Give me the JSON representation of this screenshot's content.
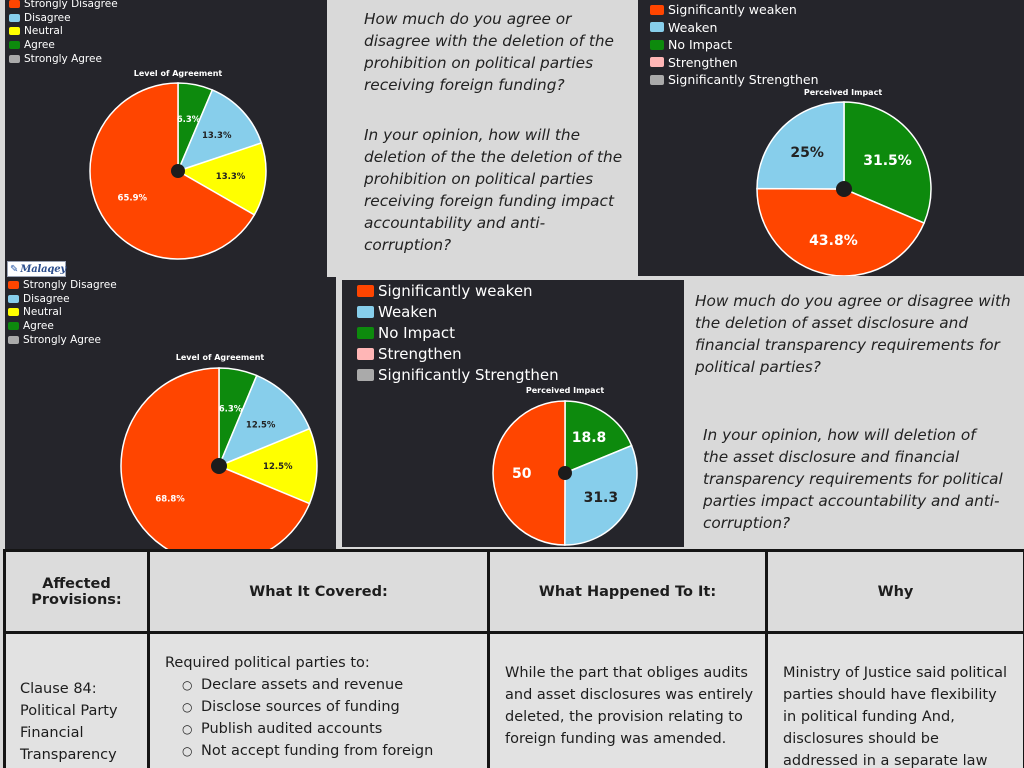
{
  "colors": {
    "strongly_disagree": "#ff4500",
    "disagree": "#87ceeb",
    "neutral": "#ffff00",
    "agree": "#0d8a0d",
    "strongly_agree": "#aaaaaa",
    "strengthen": "#ffb6b6"
  },
  "agreement_legend": [
    "Strongly Disagree",
    "Disagree",
    "Neutral",
    "Agree",
    "Strongly Agree"
  ],
  "impact_legend": [
    "Significantly weaken",
    "Weaken",
    "No Impact",
    "Strengthen",
    "Significantly Strengthen"
  ],
  "logo": {
    "icon": "logo-mark-icon",
    "text": "Malaqey"
  },
  "questions": {
    "q1": "How much do you agree or disagree with the deletion of the prohibition on political parties receiving foreign funding?",
    "q2": "In your opinion, how will the deletion of the the deletion of the prohibition on political parties receiving foreign funding impact accountability and anti-corruption?",
    "q3": "How much do you agree or disagree with the deletion of asset disclosure and financial transparency requirements for political parties?",
    "q4": "In your opinion, how will deletion of the asset disclosure and financial transparency requirements for political parties impact accountability and anti-corruption?"
  },
  "chart_data": [
    {
      "type": "pie",
      "title": "Level of Agreement",
      "legend": [
        "Strongly Disagree",
        "Disagree",
        "Neutral",
        "Agree",
        "Strongly Agree"
      ],
      "slices": [
        {
          "label": "Agree",
          "value": 6.3,
          "text": "6.3%"
        },
        {
          "label": "Disagree",
          "value": 13.3,
          "text": "13.3%"
        },
        {
          "label": "Neutral",
          "value": 13.3,
          "text": "13.3%"
        },
        {
          "label": "Strongly Disagree",
          "value": 65.9,
          "text": "65.9%"
        }
      ]
    },
    {
      "type": "pie",
      "title": "Perceived Impact",
      "legend": [
        "Significantly weaken",
        "Weaken",
        "No Impact",
        "Strengthen",
        "Significantly Strengthen"
      ],
      "slices": [
        {
          "label": "No Impact",
          "value": 31.5,
          "text": "31.5%"
        },
        {
          "label": "Significantly weaken",
          "value": 43.8,
          "text": "43.8%"
        },
        {
          "label": "Weaken",
          "value": 25,
          "text": "25%"
        }
      ]
    },
    {
      "type": "pie",
      "title": "Level of Agreement",
      "legend": [
        "Strongly Disagree",
        "Disagree",
        "Neutral",
        "Agree",
        "Strongly Agree"
      ],
      "slices": [
        {
          "label": "Agree",
          "value": 6.3,
          "text": "6.3%"
        },
        {
          "label": "Disagree",
          "value": 12.5,
          "text": "12.5%"
        },
        {
          "label": "Neutral",
          "value": 12.5,
          "text": "12.5%"
        },
        {
          "label": "Strongly Disagree",
          "value": 68.8,
          "text": "68.8%"
        }
      ]
    },
    {
      "type": "pie",
      "title": "Perceived Impact",
      "legend": [
        "Significantly weaken",
        "Weaken",
        "No Impact",
        "Strengthen",
        "Significantly Strengthen"
      ],
      "slices": [
        {
          "label": "No Impact",
          "value": 18.8,
          "text": "18.8"
        },
        {
          "label": "Weaken",
          "value": 31.3,
          "text": "31.3"
        },
        {
          "label": "Significantly weaken",
          "value": 50,
          "text": "50"
        }
      ]
    }
  ],
  "table": {
    "headers": [
      "Affected Provisions:",
      "What It Covered:",
      "What Happened To It:",
      "Why"
    ],
    "row": {
      "provision": "Clause 84: Political Party Financial Transparency",
      "covered_intro": "Required political parties to:",
      "covered_items": [
        "Declare assets and revenue",
        "Disclose sources of funding",
        "Publish audited accounts",
        "Not accept funding from foreign"
      ],
      "happened": "While the part that obliges audits and asset disclosures was entirely deleted, the provision relating to foreign funding was amended.",
      "why": "Ministry of Justice said political parties should have flexibility in political funding And, disclosures should be addressed in a separate law"
    }
  }
}
